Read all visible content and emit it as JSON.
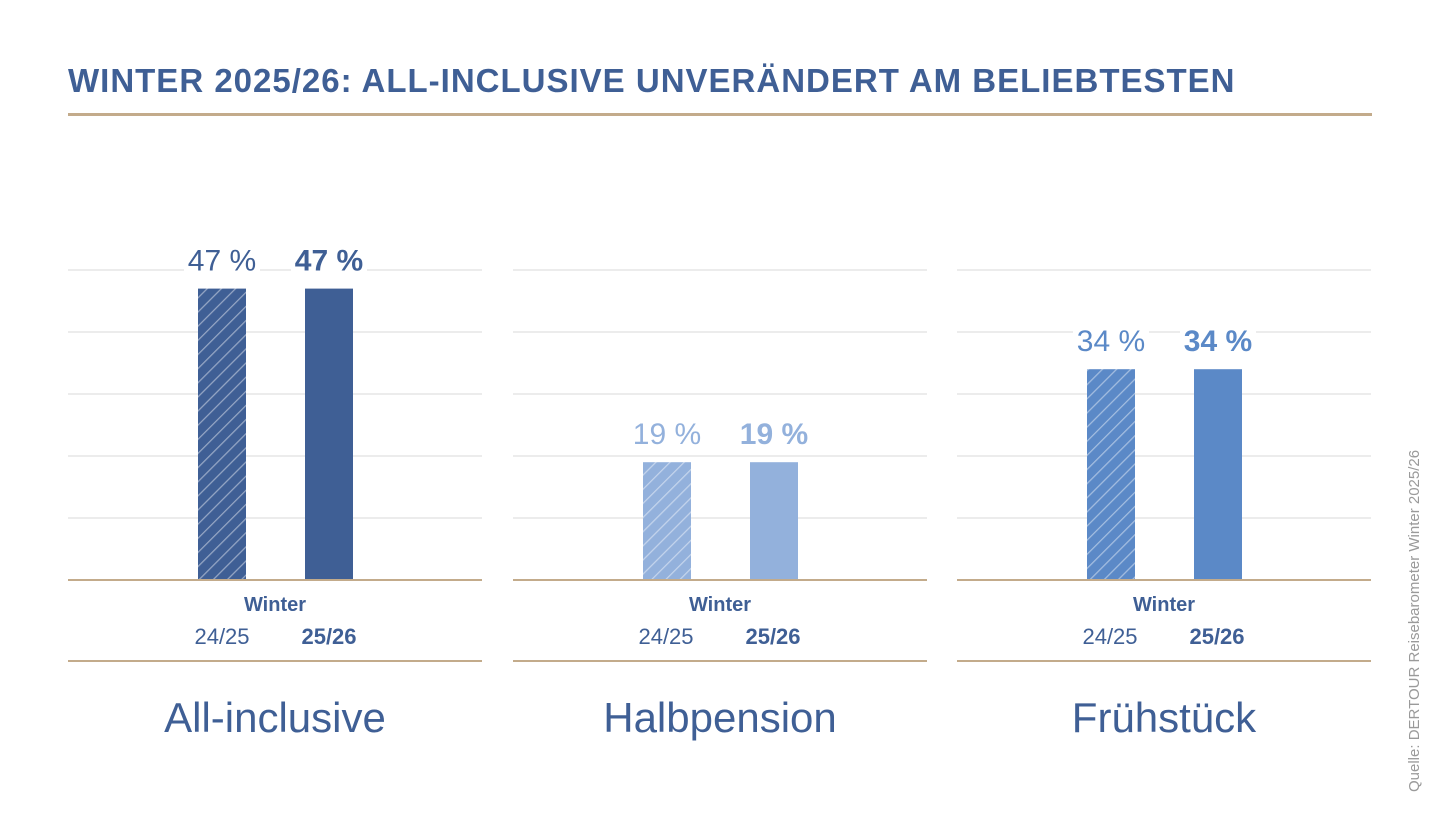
{
  "title": "WINTER 2025/26: ALL-INCLUSIVE UNVERÄNDERT AM BELIEBTESTEN",
  "source": "Quelle: DERTOUR Reisebarometer Winter 2025/26",
  "colors": {
    "title": "#3f5f95",
    "rule": "#c3ab8b",
    "grid": "#d9d9d9",
    "all_inclusive": "#3f5f95",
    "halbpension": "#93b1dc",
    "fruehstueck": "#5b89c7"
  },
  "chart_data": {
    "type": "bar",
    "title": "WINTER 2025/26: ALL-INCLUSIVE UNVERÄNDERT AM BELIEBTESTEN",
    "ylim": [
      0,
      50
    ],
    "grid": true,
    "group_label": "Winter",
    "series": [
      {
        "name": "24/25",
        "pattern": "hatched"
      },
      {
        "name": "25/26",
        "pattern": "solid"
      }
    ],
    "panels": [
      {
        "category": "All-inclusive",
        "values": [
          47,
          47
        ],
        "value_labels": [
          "47 %",
          "47 %"
        ],
        "color_key": "all_inclusive"
      },
      {
        "category": "Halbpension",
        "values": [
          19,
          19
        ],
        "value_labels": [
          "19 %",
          "19 %"
        ],
        "color_key": "halbpension"
      },
      {
        "category": "Frühstück",
        "values": [
          34,
          34
        ],
        "value_labels": [
          "34 %",
          "34 %"
        ],
        "color_key": "fruehstueck"
      }
    ]
  }
}
